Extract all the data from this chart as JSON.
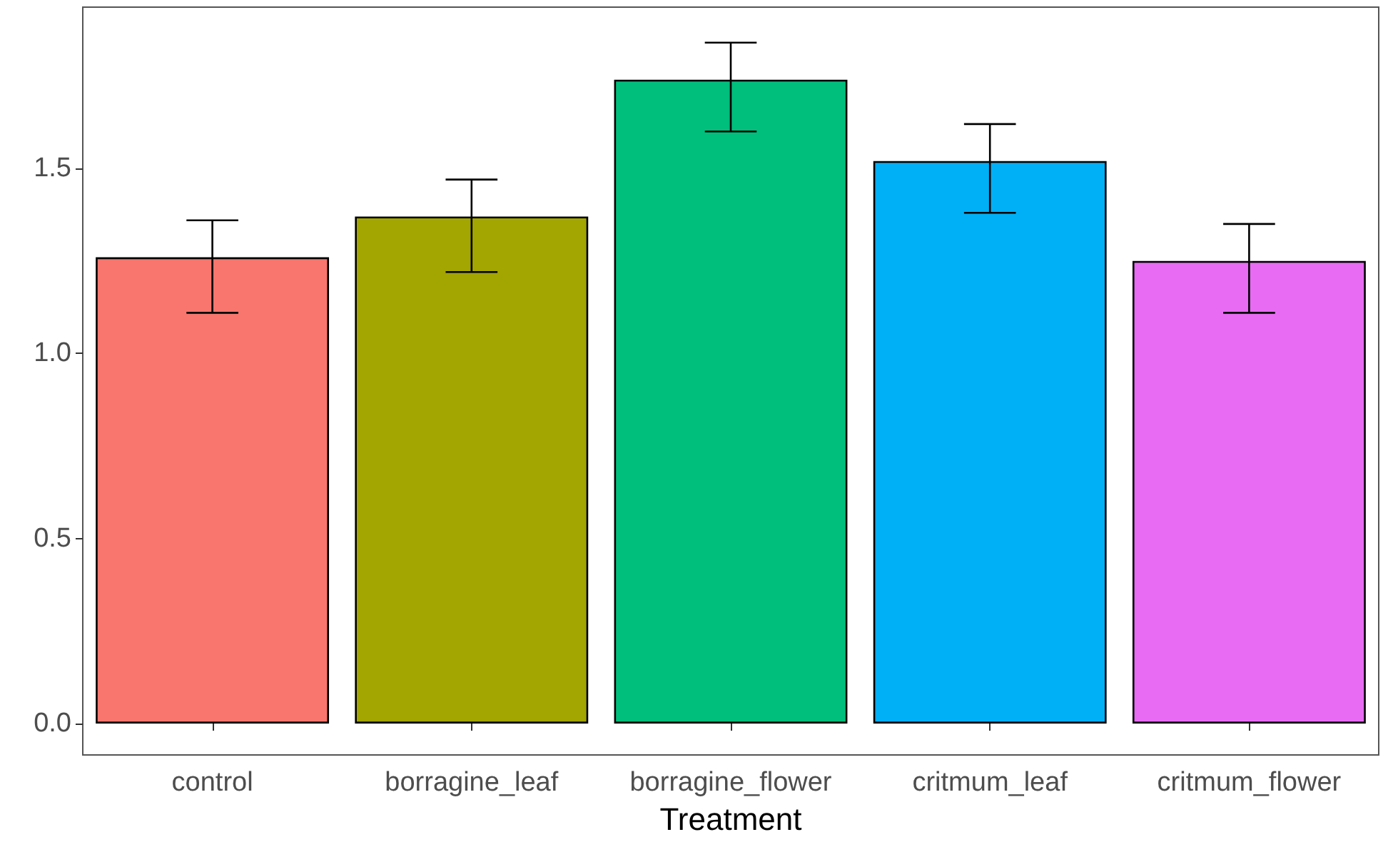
{
  "chart_data": {
    "type": "bar",
    "xlabel": "Treatment",
    "categories": [
      "control",
      "borragine_leaf",
      "borragine_flower",
      "critmum_leaf",
      "critmum_flower"
    ],
    "values": [
      1.26,
      1.37,
      1.74,
      1.52,
      1.25
    ],
    "colors": [
      "#f8766d",
      "#a3a500",
      "#00bf7d",
      "#00b0f6",
      "#e76bf3"
    ],
    "errors": [
      [
        1.11,
        1.36
      ],
      [
        1.22,
        1.47
      ],
      [
        1.6,
        1.84
      ],
      [
        1.38,
        1.62
      ],
      [
        1.11,
        1.35
      ]
    ],
    "ylim": [
      -0.085,
      1.936
    ],
    "yticks": [
      {
        "value": 0,
        "label": "0.0"
      },
      {
        "value": 0.5,
        "label": "0.5"
      },
      {
        "value": 1,
        "label": "1.0"
      },
      {
        "value": 1.5,
        "label": "1.5"
      }
    ],
    "grid": false
  }
}
